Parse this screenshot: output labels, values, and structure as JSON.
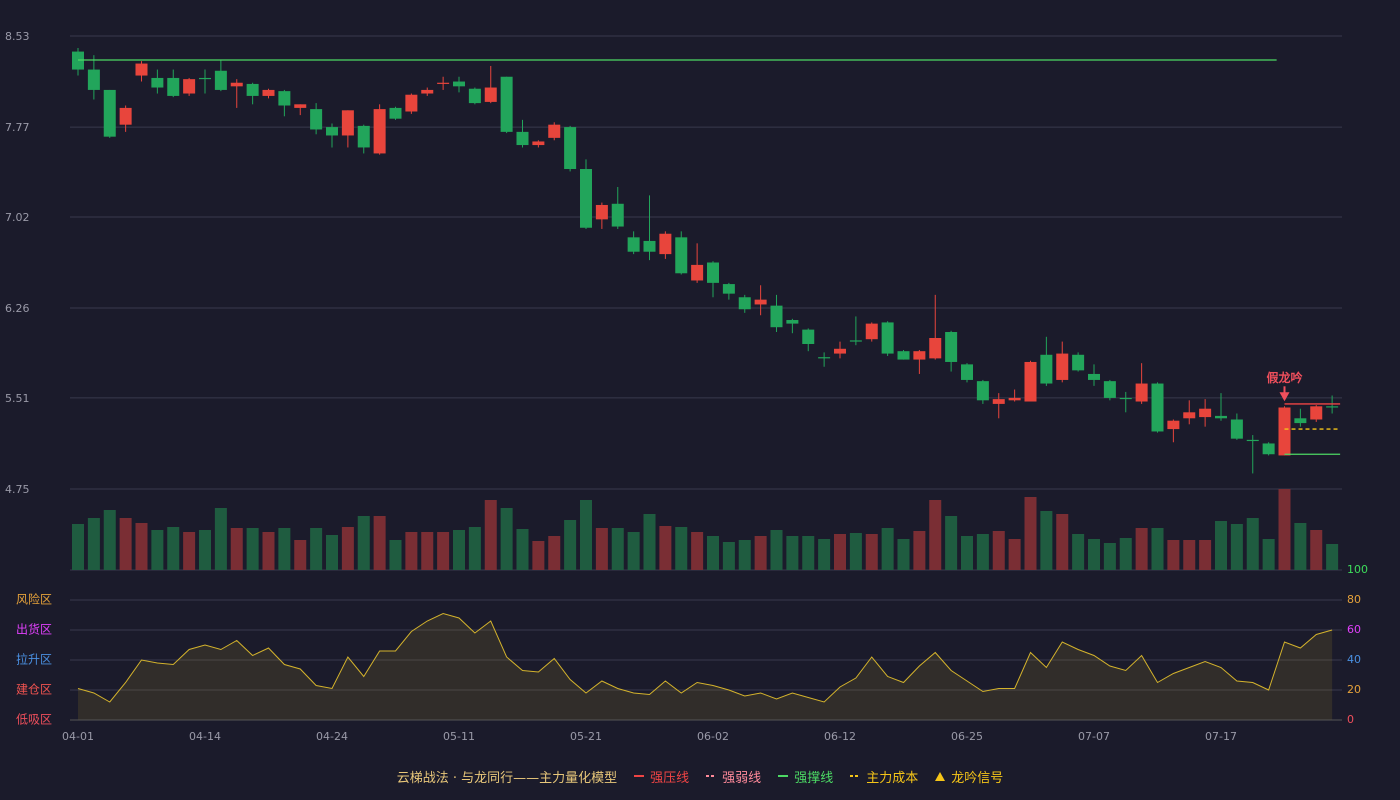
{
  "chart_data": {
    "type": "candlestick",
    "categories": [
      "04-01",
      null,
      null,
      null,
      null,
      null,
      null,
      null,
      "04-14",
      null,
      null,
      null,
      null,
      null,
      null,
      null,
      "04-24",
      null,
      null,
      null,
      null,
      null,
      null,
      null,
      "05-11",
      null,
      null,
      null,
      null,
      null,
      null,
      null,
      "05-21",
      null,
      null,
      null,
      null,
      null,
      null,
      null,
      "06-02",
      null,
      null,
      null,
      null,
      null,
      null,
      null,
      "06-12",
      null,
      null,
      null,
      null,
      null,
      null,
      null,
      "06-25",
      null,
      null,
      null,
      null,
      null,
      null,
      null,
      "07-07",
      null,
      null,
      null,
      null,
      null,
      null,
      null,
      "07-17",
      null,
      null,
      null,
      null,
      null,
      null,
      null
    ],
    "open": [
      8.4,
      8.25,
      8.08,
      7.79,
      8.2,
      8.18,
      8.18,
      8.05,
      8.18,
      8.24,
      8.11,
      8.13,
      8.03,
      8.07,
      7.93,
      7.92,
      7.77,
      7.7,
      7.78,
      7.55,
      7.93,
      7.9,
      8.05,
      8.13,
      8.15,
      8.09,
      7.98,
      8.19,
      7.73,
      7.62,
      7.68,
      7.77,
      7.42,
      7.0,
      7.13,
      6.85,
      6.82,
      6.71,
      6.85,
      6.49,
      6.64,
      6.46,
      6.35,
      6.29,
      6.28,
      6.16,
      6.08,
      5.85,
      5.88,
      5.99,
      6.0,
      6.14,
      5.9,
      5.83,
      5.84,
      6.06,
      5.79,
      5.65,
      5.46,
      5.49,
      5.48,
      5.87,
      5.66,
      5.87,
      5.71,
      5.65,
      5.51,
      5.48,
      5.63,
      5.25,
      5.34,
      5.35,
      5.36,
      5.33,
      5.16,
      5.13,
      5.03,
      5.34,
      5.33,
      5.44
    ],
    "high": [
      8.43,
      8.37,
      8.08,
      7.95,
      8.32,
      8.25,
      8.25,
      8.18,
      8.25,
      8.33,
      8.17,
      8.14,
      8.09,
      8.08,
      7.96,
      7.97,
      7.8,
      7.91,
      7.79,
      7.96,
      7.94,
      8.05,
      8.1,
      8.19,
      8.19,
      8.1,
      8.28,
      8.19,
      7.83,
      7.66,
      7.81,
      7.78,
      7.5,
      7.14,
      7.27,
      6.9,
      7.2,
      6.9,
      6.9,
      6.8,
      6.65,
      6.47,
      6.37,
      6.45,
      6.37,
      6.17,
      6.09,
      5.89,
      5.98,
      6.19,
      6.14,
      6.15,
      5.91,
      5.91,
      6.37,
      6.07,
      5.8,
      5.66,
      5.55,
      5.58,
      5.82,
      6.02,
      5.98,
      5.89,
      5.79,
      5.66,
      5.56,
      5.8,
      5.64,
      5.33,
      5.49,
      5.5,
      5.55,
      5.38,
      5.2,
      5.14,
      5.44,
      5.42,
      5.45,
      5.53
    ],
    "low": [
      8.2,
      8.0,
      7.68,
      7.73,
      8.15,
      8.05,
      8.02,
      8.03,
      8.05,
      8.07,
      7.93,
      7.96,
      8.01,
      7.86,
      7.87,
      7.71,
      7.6,
      7.6,
      7.55,
      7.54,
      7.83,
      7.88,
      8.03,
      8.08,
      8.06,
      7.96,
      7.97,
      7.72,
      7.6,
      7.6,
      7.66,
      7.4,
      6.92,
      6.92,
      6.92,
      6.71,
      6.66,
      6.67,
      6.54,
      6.47,
      6.35,
      6.33,
      6.22,
      6.2,
      6.06,
      6.05,
      5.9,
      5.77,
      5.84,
      5.95,
      5.98,
      5.86,
      5.83,
      5.71,
      5.83,
      5.73,
      5.64,
      5.46,
      5.34,
      5.48,
      5.48,
      5.61,
      5.64,
      5.73,
      5.61,
      5.49,
      5.39,
      5.46,
      5.22,
      5.14,
      5.29,
      5.27,
      5.32,
      5.16,
      4.88,
      5.03,
      5.03,
      5.27,
      5.31,
      5.38
    ],
    "close": [
      8.25,
      8.08,
      7.69,
      7.93,
      8.3,
      8.1,
      8.03,
      8.17,
      8.17,
      8.08,
      8.14,
      8.03,
      8.08,
      7.95,
      7.96,
      7.75,
      7.7,
      7.91,
      7.6,
      7.92,
      7.84,
      8.04,
      8.08,
      8.14,
      8.11,
      7.97,
      8.1,
      7.73,
      7.62,
      7.65,
      7.79,
      7.42,
      6.93,
      7.12,
      6.94,
      6.73,
      6.73,
      6.88,
      6.55,
      6.62,
      6.47,
      6.38,
      6.25,
      6.33,
      6.1,
      6.13,
      5.96,
      5.84,
      5.92,
      5.98,
      6.13,
      5.88,
      5.83,
      5.9,
      6.01,
      5.81,
      5.66,
      5.49,
      5.5,
      5.51,
      5.81,
      5.63,
      5.88,
      5.74,
      5.66,
      5.51,
      5.5,
      5.63,
      5.23,
      5.32,
      5.39,
      5.42,
      5.34,
      5.17,
      5.15,
      5.04,
      5.43,
      5.3,
      5.44,
      5.43
    ],
    "volume": [
      46,
      52,
      60,
      52,
      47,
      40,
      43,
      38,
      40,
      62,
      42,
      42,
      38,
      42,
      30,
      42,
      35,
      43,
      54,
      54,
      30,
      38,
      38,
      38,
      40,
      43,
      70,
      62,
      41,
      29,
      34,
      50,
      70,
      42,
      42,
      38,
      56,
      44,
      43,
      38,
      34,
      28,
      30,
      34,
      40,
      34,
      34,
      31,
      36,
      37,
      36,
      42,
      31,
      39,
      70,
      54,
      34,
      36,
      39,
      31,
      73,
      59,
      56,
      36,
      31,
      27,
      32,
      42,
      42,
      30,
      30,
      30,
      49,
      46,
      52,
      31,
      81,
      47,
      40,
      26
    ],
    "up_color": "#e8453c",
    "down_color": "#22a55b",
    "ylim": [
      4.75,
      8.53
    ],
    "yticks": [
      4.75,
      5.51,
      6.26,
      7.02,
      7.77,
      8.53
    ],
    "grid": true,
    "oscillator": {
      "values": [
        21,
        18,
        12,
        25,
        40,
        38,
        37,
        47,
        50,
        47,
        53,
        43,
        48,
        37,
        34,
        23,
        21,
        42,
        29,
        46,
        46,
        59,
        66,
        71,
        68,
        58,
        66,
        42,
        33,
        32,
        41,
        27,
        18,
        26,
        21,
        18,
        17,
        26,
        18,
        25,
        23,
        20,
        16,
        18,
        14,
        18,
        15,
        12,
        22,
        28,
        42,
        29,
        25,
        36,
        45,
        33,
        26,
        19,
        21,
        21,
        45,
        35,
        52,
        47,
        43,
        36,
        33,
        43,
        25,
        31,
        35,
        39,
        35,
        26,
        25,
        20,
        52,
        48,
        57,
        60
      ],
      "color": "#d4b32c",
      "ylim": [
        0,
        100
      ],
      "yticks": [
        0,
        20,
        40,
        60,
        80,
        100
      ],
      "ytick_colors": [
        "#ef4f5c",
        "#e5a13a",
        "#4a90e2",
        "#e040fb",
        "#e5a13a",
        "#3ddc5b"
      ],
      "zones": [
        {
          "label": "风险区",
          "value": 80,
          "color": "#e5a13a"
        },
        {
          "label": "出货区",
          "value": 60,
          "color": "#e040fb"
        },
        {
          "label": "拉升区",
          "value": 40,
          "color": "#4a90e2"
        },
        {
          "label": "建仓区",
          "value": 20,
          "color": "#ef5350"
        },
        {
          "label": "低吸区",
          "value": 0,
          "color": "#ef4f5c"
        }
      ]
    },
    "legend_title": "云梯战法 · 与龙同行——主力量化模型",
    "legend": [
      {
        "name": "强压线",
        "color": "#ef4444",
        "style": "solid",
        "levels": [
          {
            "value": 5.46,
            "from": 76,
            "to": 79
          }
        ]
      },
      {
        "name": "强弱线",
        "color": "#ff8a9a",
        "style": "dashed",
        "levels": []
      },
      {
        "name": "强撑线",
        "color": "#4cd964",
        "style": "solid",
        "levels": [
          {
            "value": 8.33,
            "from": 0,
            "to": 75
          },
          {
            "value": 5.04,
            "from": 76,
            "to": 79
          }
        ]
      },
      {
        "name": "主力成本",
        "color": "#f5c518",
        "style": "dashed",
        "levels": [
          {
            "value": 5.25,
            "from": 76,
            "to": 79
          }
        ]
      },
      {
        "name": "龙吟信号",
        "color": "#f5c518",
        "style": "triangle",
        "levels": []
      }
    ],
    "signals": [
      {
        "index": 76,
        "label": "假龙吟",
        "color": "#ef4f5c"
      }
    ]
  }
}
